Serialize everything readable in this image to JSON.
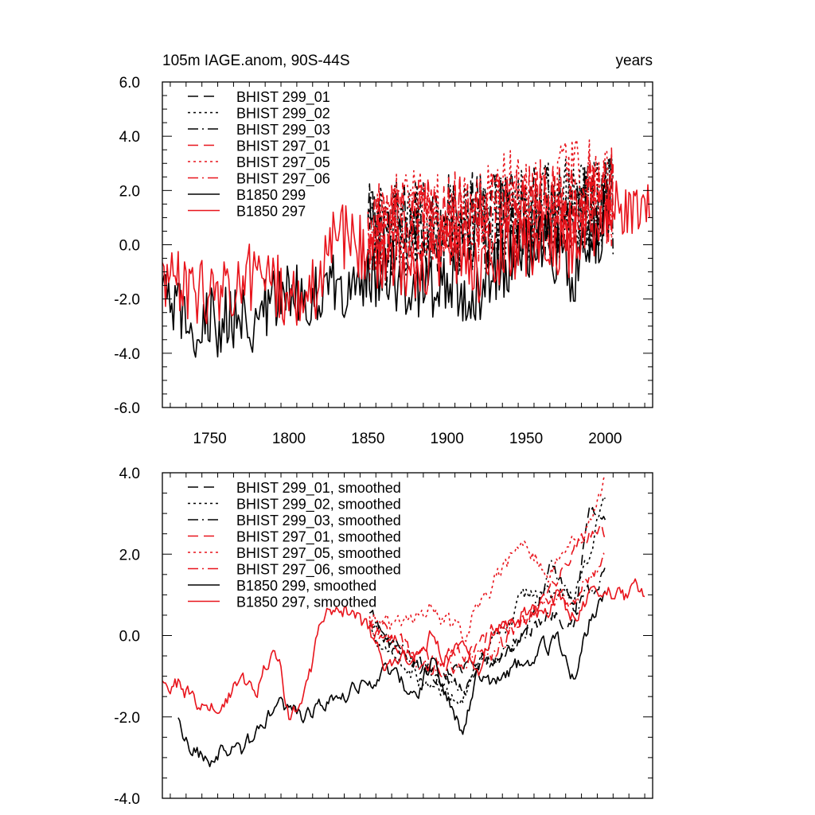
{
  "colors": {
    "black": "#000000",
    "red": "#e8141c"
  },
  "chart_data": [
    {
      "type": "line",
      "title_left": "105m IAGE.anom, 90S-44S",
      "title_right": "years",
      "xlabel": "",
      "ylabel": "",
      "xlim": [
        1720,
        2030
      ],
      "ylim": [
        -6,
        6
      ],
      "xticks": [
        "1750",
        "1800",
        "1850",
        "1900",
        "1950",
        "2000"
      ],
      "yticks": [
        "-6.0",
        "-4.0",
        "-2.0",
        "0.0",
        "2.0",
        "4.0",
        "6.0"
      ],
      "legend_position": "top-left",
      "series": [
        {
          "name": "BHIST 299_01",
          "color": "black",
          "dash": "dash",
          "x": [
            1850,
            2005
          ],
          "values": [
            0.5,
            1.5
          ]
        },
        {
          "name": "BHIST 299_02",
          "color": "black",
          "dash": "dot",
          "x": [
            1850,
            2005
          ],
          "values": [
            0.3,
            1.6
          ]
        },
        {
          "name": "BHIST 299_03",
          "color": "black",
          "dash": "dashdot",
          "x": [
            1850,
            2005
          ],
          "values": [
            0.2,
            1.4
          ]
        },
        {
          "name": "BHIST 297_01",
          "color": "red",
          "dash": "dash",
          "x": [
            1850,
            2005
          ],
          "values": [
            0.4,
            1.8
          ]
        },
        {
          "name": "BHIST 297_05",
          "color": "red",
          "dash": "dot",
          "x": [
            1850,
            2005
          ],
          "values": [
            0.6,
            2.5
          ]
        },
        {
          "name": "BHIST 297_06",
          "color": "red",
          "dash": "dashdot",
          "x": [
            1850,
            2005
          ],
          "values": [
            0.3,
            1.7
          ]
        },
        {
          "name": "B1850 299",
          "color": "black",
          "dash": "solid",
          "x": [
            1720,
            1740,
            1760,
            1780,
            1800,
            1820,
            1840,
            1860,
            1880,
            1900,
            1920,
            1940,
            1960,
            1980,
            2000
          ],
          "values": [
            -2.0,
            -3.0,
            -2.8,
            -2.7,
            -1.8,
            -1.8,
            -1.3,
            -1.0,
            -1.5,
            -1.3,
            -1.8,
            -0.5,
            0.2,
            -1.0,
            1.0
          ]
        },
        {
          "name": "B1850 297",
          "color": "red",
          "dash": "solid",
          "x": [
            1720,
            1740,
            1760,
            1780,
            1800,
            1820,
            1830,
            1840,
            1860,
            1880,
            1900,
            1920,
            1940,
            1960,
            1980,
            2000,
            2010,
            2020,
            2028
          ],
          "values": [
            -1.2,
            -1.8,
            -1.6,
            -1.1,
            -2.0,
            -1.5,
            0.6,
            0.2,
            -0.5,
            -0.8,
            -0.3,
            -1.0,
            -0.2,
            0.3,
            0.0,
            1.2,
            1.0,
            1.3,
            1.0
          ]
        }
      ]
    },
    {
      "type": "line",
      "title_left": "",
      "title_right": "",
      "xlabel": "",
      "ylabel": "",
      "xlim": [
        1720,
        2030
      ],
      "ylim": [
        -4,
        4
      ],
      "yticks": [
        "-4.0",
        "-2.0",
        "0.0",
        "2.0",
        "4.0"
      ],
      "legend_position": "top-left",
      "series": [
        {
          "name": "BHIST 299_01, smoothed",
          "color": "black",
          "dash": "dash",
          "x": [
            1851,
            1870,
            1890,
            1910,
            1930,
            1950,
            1965,
            1980,
            1990,
            2000
          ],
          "values": [
            0.5,
            -0.6,
            -0.9,
            -0.8,
            -0.6,
            0.0,
            0.6,
            0.4,
            3.1,
            2.8
          ]
        },
        {
          "name": "BHIST 299_02, smoothed",
          "color": "black",
          "dash": "dot",
          "x": [
            1851,
            1870,
            1890,
            1910,
            1930,
            1950,
            1965,
            1980,
            1990,
            2000
          ],
          "values": [
            0.2,
            -0.6,
            -1.3,
            -1.5,
            -0.2,
            1.0,
            1.1,
            0.9,
            2.0,
            3.5
          ]
        },
        {
          "name": "BHIST 299_03, smoothed",
          "color": "black",
          "dash": "dashdot",
          "x": [
            1851,
            1870,
            1890,
            1910,
            1930,
            1950,
            1965,
            1980,
            1990,
            2000
          ],
          "values": [
            0.3,
            -0.3,
            -0.9,
            -1.2,
            -0.5,
            0.2,
            1.6,
            0.7,
            1.0,
            1.7
          ]
        },
        {
          "name": "BHIST 297_01, smoothed",
          "color": "red",
          "dash": "dash",
          "x": [
            1851,
            1870,
            1890,
            1910,
            1930,
            1950,
            1965,
            1980,
            1990,
            2000
          ],
          "values": [
            0.3,
            -0.2,
            -0.7,
            -0.5,
            0.1,
            0.4,
            1.0,
            2.2,
            2.4,
            2.5
          ]
        },
        {
          "name": "BHIST 297_05, smoothed",
          "color": "red",
          "dash": "dot",
          "x": [
            1851,
            1870,
            1890,
            1910,
            1930,
            1950,
            1965,
            1980,
            1990,
            2000
          ],
          "values": [
            0.4,
            0.2,
            0.6,
            0.0,
            1.4,
            2.2,
            1.5,
            2.2,
            2.8,
            3.8
          ]
        },
        {
          "name": "BHIST 297_06, smoothed",
          "color": "red",
          "dash": "dashdot",
          "x": [
            1851,
            1870,
            1890,
            1910,
            1930,
            1950,
            1965,
            1980,
            1990,
            2000
          ],
          "values": [
            0.2,
            -0.3,
            -0.8,
            -0.7,
            -0.4,
            0.5,
            0.9,
            0.9,
            1.5,
            2.0
          ]
        },
        {
          "name": "B1850 299, smoothed",
          "color": "black",
          "dash": "solid",
          "x": [
            1730,
            1735,
            1745,
            1750,
            1760,
            1770,
            1780,
            1790,
            1800,
            1810,
            1820,
            1830,
            1840,
            1850,
            1860,
            1870,
            1880,
            1890,
            1900,
            1910,
            1920,
            1930,
            1940,
            1950,
            1960,
            1970,
            1980,
            1990,
            2000
          ],
          "values": [
            -2.1,
            -2.6,
            -3.0,
            -3.1,
            -2.7,
            -2.8,
            -2.4,
            -1.7,
            -1.8,
            -2.0,
            -1.7,
            -1.6,
            -1.4,
            -1.2,
            -0.8,
            -1.1,
            -1.5,
            -0.6,
            -1.6,
            -2.3,
            -1.0,
            -1.3,
            -0.9,
            -0.6,
            -0.3,
            -0.2,
            -1.1,
            0.3,
            1.2
          ]
        },
        {
          "name": "B1850 297, smoothed",
          "color": "red",
          "dash": "solid",
          "x": [
            1720,
            1730,
            1740,
            1750,
            1760,
            1770,
            1780,
            1790,
            1794,
            1800,
            1805,
            1810,
            1815,
            1820,
            1826,
            1830,
            1840,
            1850,
            1860,
            1870,
            1880,
            1890,
            1900,
            1910,
            1920,
            1930,
            1940,
            1950,
            1960,
            1970,
            1980,
            1990,
            2000,
            2010,
            2015,
            2020,
            2025
          ],
          "values": [
            -1.2,
            -1.2,
            -1.6,
            -1.8,
            -1.5,
            -1.2,
            -1.4,
            -0.3,
            -0.7,
            -2.0,
            -1.8,
            -1.5,
            -0.7,
            0.2,
            0.8,
            0.7,
            0.6,
            0.1,
            -0.7,
            -0.6,
            -0.4,
            0.0,
            -0.5,
            -0.3,
            -0.9,
            0.2,
            0.3,
            0.6,
            0.5,
            1.0,
            0.5,
            0.9,
            1.2,
            1.0,
            0.9,
            1.3,
            1.0
          ]
        }
      ]
    }
  ]
}
